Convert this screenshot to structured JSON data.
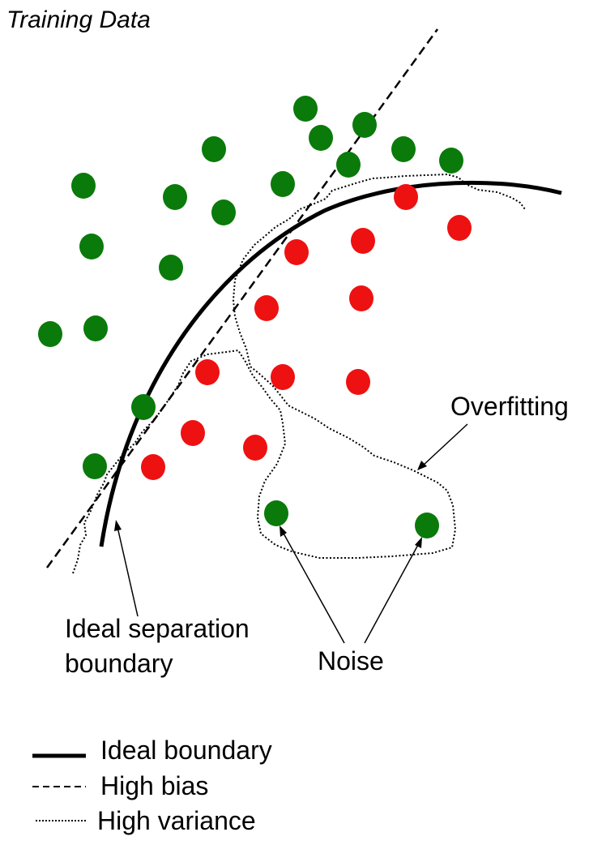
{
  "title": "Training Data",
  "annotations": {
    "overfitting": "Overfitting",
    "ideal_line1": "Ideal separation",
    "ideal_line2": "boundary",
    "noise": "Noise"
  },
  "legend": {
    "ideal": "Ideal boundary",
    "bias": "High bias",
    "variance": "High variance"
  },
  "colors": {
    "green_class": "#0a7a0a",
    "red_class": "#ee1111",
    "line": "#000000"
  }
}
